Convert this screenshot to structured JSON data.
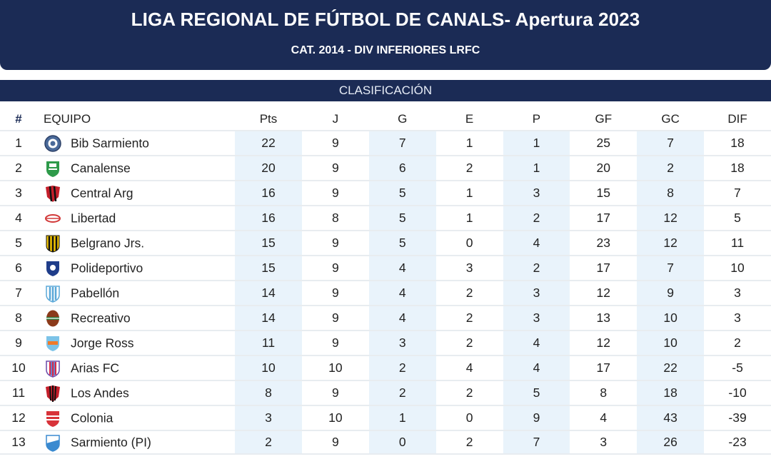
{
  "header": {
    "title": "LIGA REGIONAL DE FÚTBOL DE CANALS- Apertura 2023",
    "subtitle": "CAT. 2014 - DIV INFERIORES LRFC"
  },
  "section": {
    "title": "CLASIFICACIÓN"
  },
  "columns": {
    "pos": "#",
    "team": "EQUIPO",
    "pts": "Pts",
    "j": "J",
    "g": "G",
    "e": "E",
    "p": "P",
    "gf": "GF",
    "gc": "GC",
    "dif": "DIF"
  },
  "rows": [
    {
      "pos": "1",
      "team": "Bib Sarmiento",
      "crest": "bib-sarmiento-crest-icon",
      "pts": "22",
      "j": "9",
      "g": "7",
      "e": "1",
      "p": "1",
      "gf": "25",
      "gc": "7",
      "dif": "18"
    },
    {
      "pos": "2",
      "team": "Canalense",
      "crest": "canalense-crest-icon",
      "pts": "20",
      "j": "9",
      "g": "6",
      "e": "2",
      "p": "1",
      "gf": "20",
      "gc": "2",
      "dif": "18"
    },
    {
      "pos": "3",
      "team": "Central Arg",
      "crest": "central-arg-crest-icon",
      "pts": "16",
      "j": "9",
      "g": "5",
      "e": "1",
      "p": "3",
      "gf": "15",
      "gc": "8",
      "dif": "7"
    },
    {
      "pos": "4",
      "team": "Libertad",
      "crest": "libertad-crest-icon",
      "pts": "16",
      "j": "8",
      "g": "5",
      "e": "1",
      "p": "2",
      "gf": "17",
      "gc": "12",
      "dif": "5"
    },
    {
      "pos": "5",
      "team": "Belgrano Jrs.",
      "crest": "belgrano-jrs-crest-icon",
      "pts": "15",
      "j": "9",
      "g": "5",
      "e": "0",
      "p": "4",
      "gf": "23",
      "gc": "12",
      "dif": "11"
    },
    {
      "pos": "6",
      "team": "Polideportivo",
      "crest": "polideportivo-crest-icon",
      "pts": "15",
      "j": "9",
      "g": "4",
      "e": "3",
      "p": "2",
      "gf": "17",
      "gc": "7",
      "dif": "10"
    },
    {
      "pos": "7",
      "team": "Pabellón",
      "crest": "pabellon-crest-icon",
      "pts": "14",
      "j": "9",
      "g": "4",
      "e": "2",
      "p": "3",
      "gf": "12",
      "gc": "9",
      "dif": "3"
    },
    {
      "pos": "8",
      "team": "Recreativo",
      "crest": "recreativo-crest-icon",
      "pts": "14",
      "j": "9",
      "g": "4",
      "e": "2",
      "p": "3",
      "gf": "13",
      "gc": "10",
      "dif": "3"
    },
    {
      "pos": "9",
      "team": "Jorge Ross",
      "crest": "jorge-ross-crest-icon",
      "pts": "11",
      "j": "9",
      "g": "3",
      "e": "2",
      "p": "4",
      "gf": "12",
      "gc": "10",
      "dif": "2"
    },
    {
      "pos": "10",
      "team": "Arias FC",
      "crest": "arias-fc-crest-icon",
      "pts": "10",
      "j": "10",
      "g": "2",
      "e": "4",
      "p": "4",
      "gf": "17",
      "gc": "22",
      "dif": "-5"
    },
    {
      "pos": "11",
      "team": "Los Andes",
      "crest": "los-andes-crest-icon",
      "pts": "8",
      "j": "9",
      "g": "2",
      "e": "2",
      "p": "5",
      "gf": "8",
      "gc": "18",
      "dif": "-10"
    },
    {
      "pos": "12",
      "team": "Colonia",
      "crest": "colonia-crest-icon",
      "pts": "3",
      "j": "10",
      "g": "1",
      "e": "0",
      "p": "9",
      "gf": "4",
      "gc": "43",
      "dif": "-39"
    },
    {
      "pos": "13",
      "team": "Sarmiento (PI)",
      "crest": "sarmiento-pi-crest-icon",
      "pts": "2",
      "j": "9",
      "g": "0",
      "e": "2",
      "p": "7",
      "gf": "3",
      "gc": "26",
      "dif": "-23"
    }
  ],
  "colors": {
    "header_bg": "#1b2b55",
    "shade": "#e9f3fb",
    "row_divider": "#e8ecf0"
  }
}
